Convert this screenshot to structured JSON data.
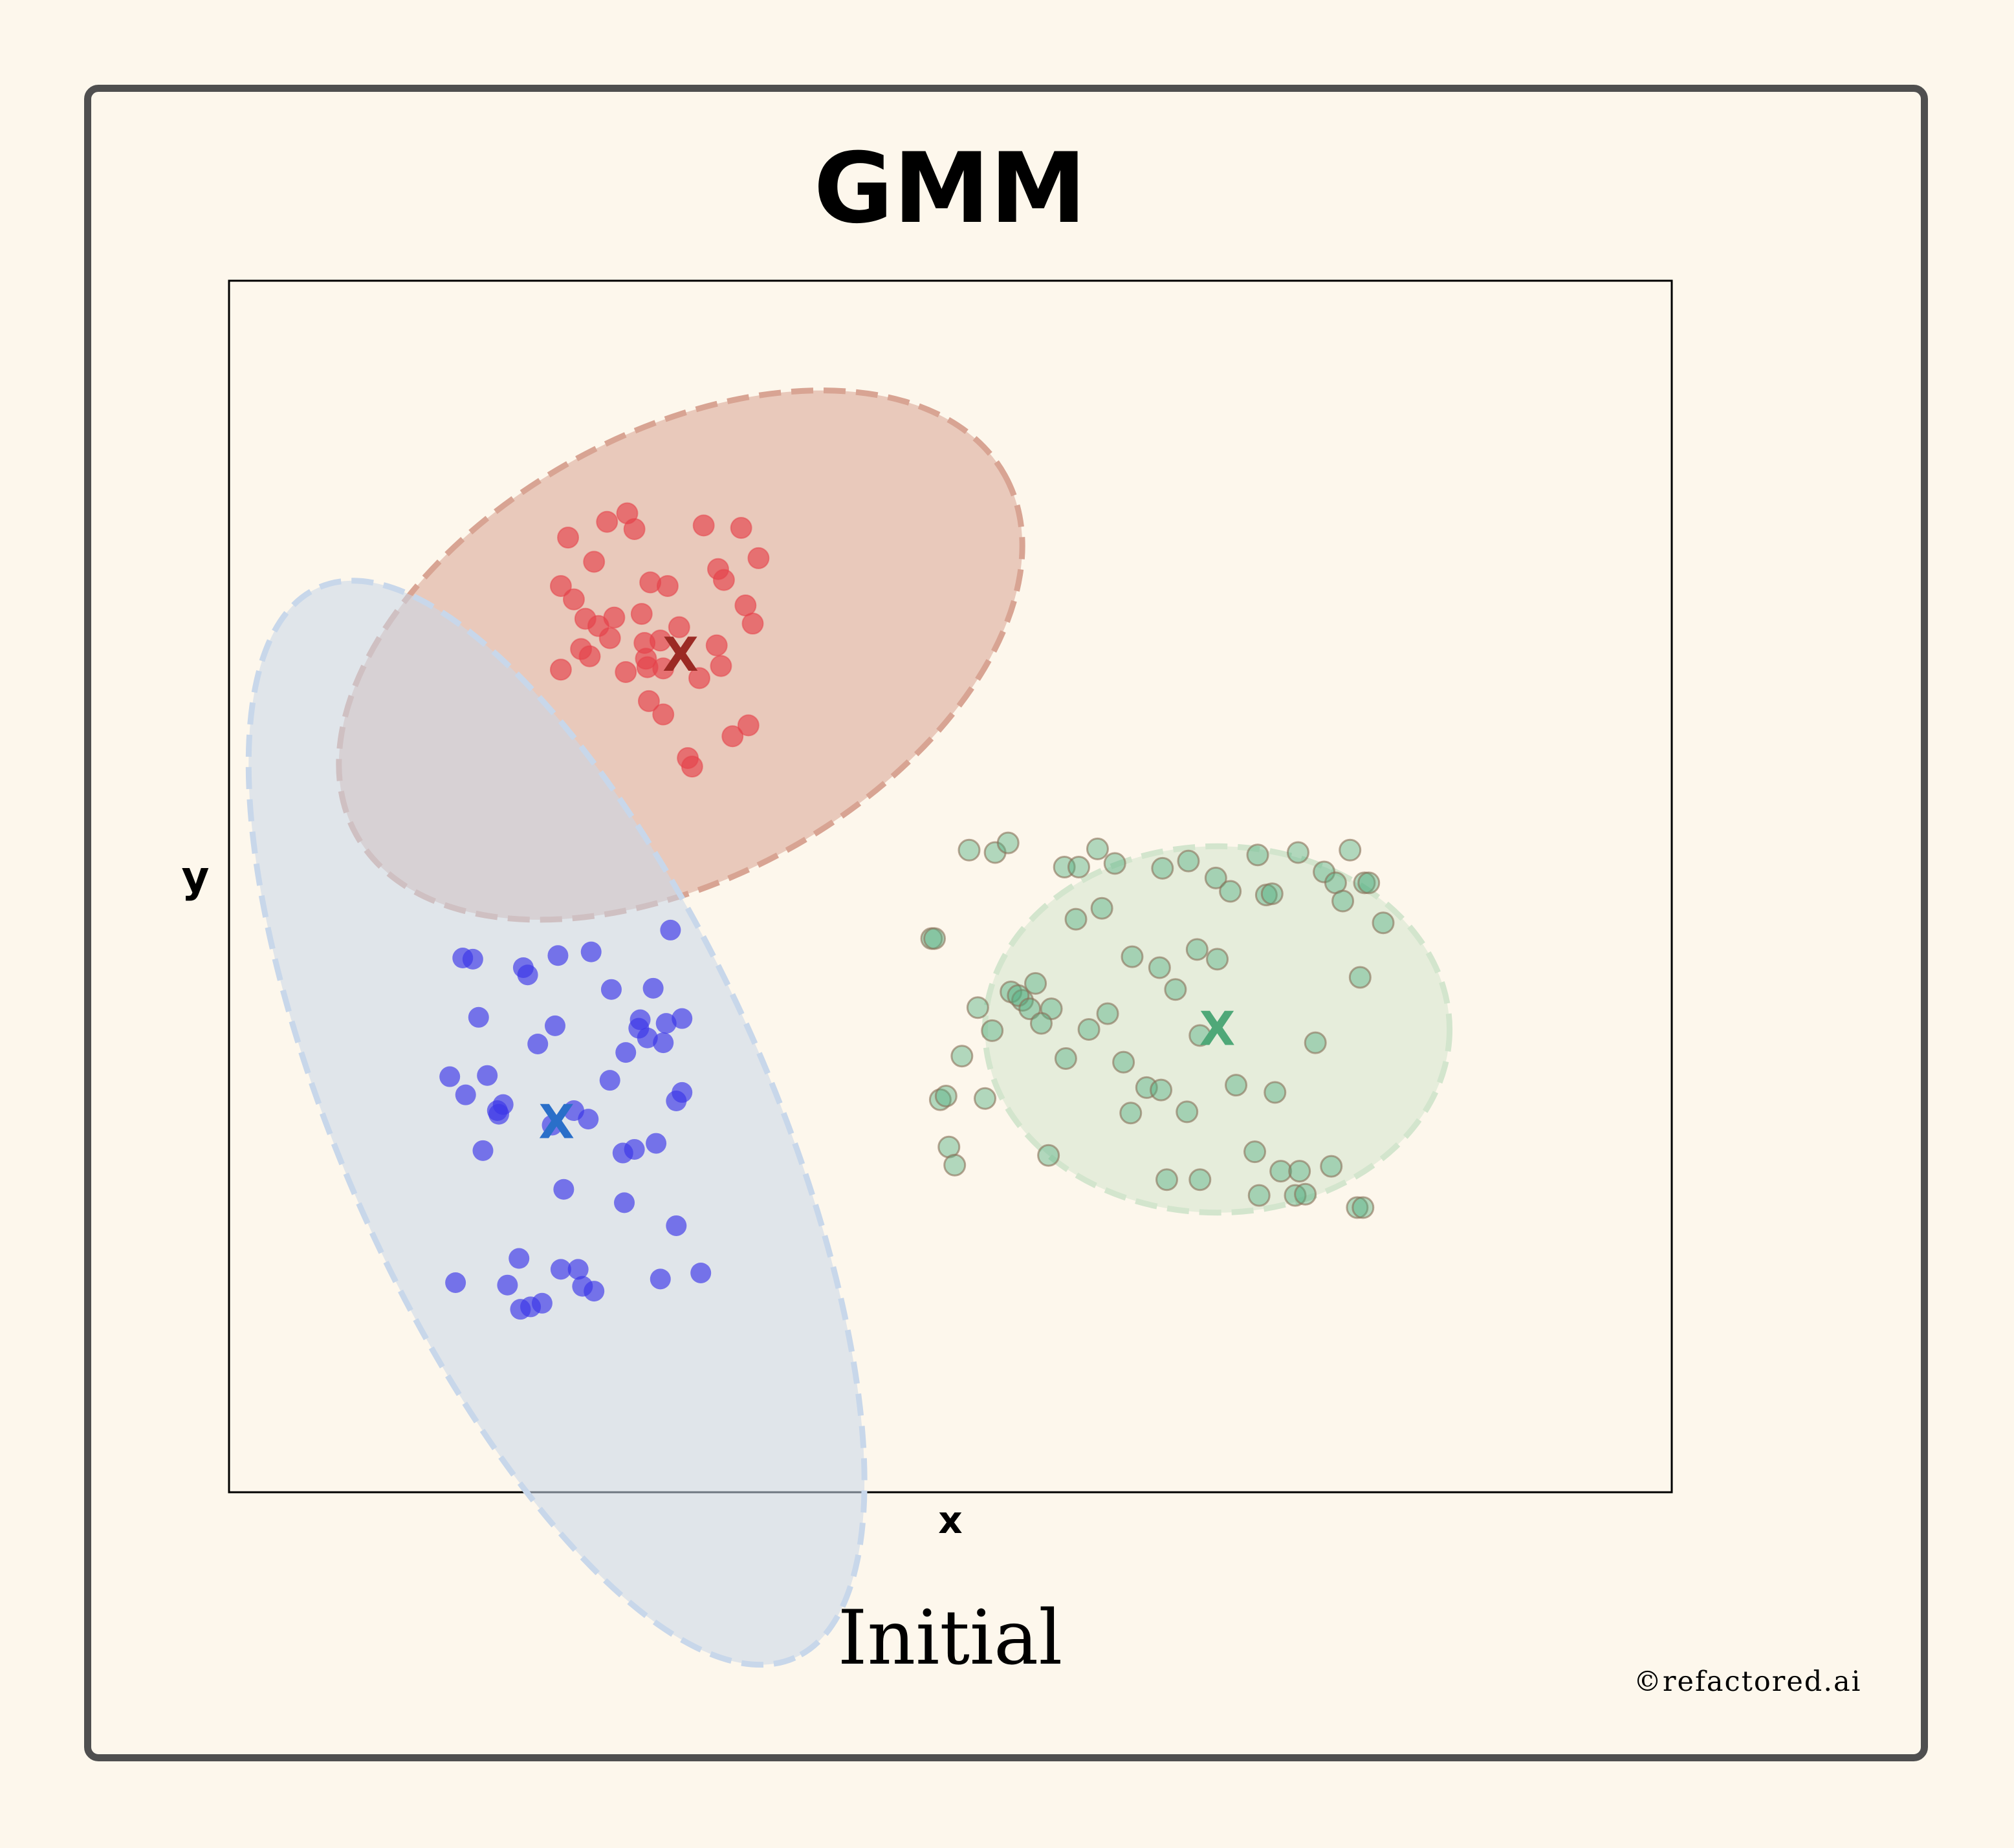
{
  "chart_data": {
    "type": "scatter",
    "title": "GMM",
    "subtitle": "Initial",
    "xlabel": "x",
    "ylabel": "y",
    "xlim": [
      0,
      100
    ],
    "ylim": [
      0,
      100
    ],
    "grid": false,
    "ticks": false,
    "centroid_marker": "X",
    "components": [
      {
        "color": "#d8a493",
        "point_color": "#e5414a",
        "centroid_color": "#9b2a24",
        "mean": [
          31.3,
          69.1
        ],
        "ellipse_radii": [
          25.7,
          15.4
        ],
        "ellipse_angle_deg": 29,
        "points": [
          [
            26.2,
            80.1
          ],
          [
            25.3,
            76.8
          ],
          [
            23.5,
            78.8
          ],
          [
            27.6,
            80.8
          ],
          [
            28.1,
            79.5
          ],
          [
            23.0,
            74.8
          ],
          [
            29.2,
            75.1
          ],
          [
            23.9,
            73.7
          ],
          [
            24.7,
            72.1
          ],
          [
            26.7,
            72.2
          ],
          [
            28.6,
            72.5
          ],
          [
            32.9,
            79.8
          ],
          [
            25.6,
            71.5
          ],
          [
            26.4,
            70.5
          ],
          [
            24.4,
            69.6
          ],
          [
            25.0,
            69.0
          ],
          [
            30.4,
            74.8
          ],
          [
            28.8,
            70.1
          ],
          [
            31.2,
            71.4
          ],
          [
            33.9,
            76.2
          ],
          [
            34.3,
            75.3
          ],
          [
            36.7,
            77.1
          ],
          [
            35.5,
            79.6
          ],
          [
            35.8,
            73.2
          ],
          [
            36.3,
            71.7
          ],
          [
            34.1,
            68.2
          ],
          [
            23.0,
            67.9
          ],
          [
            27.5,
            67.7
          ],
          [
            29.0,
            68.1
          ],
          [
            30.1,
            68.0
          ],
          [
            28.9,
            68.8
          ],
          [
            32.6,
            67.2
          ],
          [
            33.8,
            69.9
          ],
          [
            29.9,
            70.3
          ],
          [
            30.1,
            64.2
          ],
          [
            29.1,
            65.3
          ],
          [
            34.9,
            62.4
          ],
          [
            31.8,
            60.6
          ],
          [
            36.0,
            63.3
          ],
          [
            32.1,
            59.9
          ]
        ]
      },
      {
        "color": "#c8d7ea",
        "point_color": "#3a34e8",
        "centroid_color": "#2a6fc9",
        "mean": [
          22.7,
          30.5
        ],
        "ellipse_radii": [
          40.6,
          14.8
        ],
        "ellipse_angle_deg": -66,
        "points": [
          [
            16.2,
            44.1
          ],
          [
            16.9,
            44.0
          ],
          [
            20.4,
            43.3
          ],
          [
            20.7,
            42.7
          ],
          [
            22.8,
            44.3
          ],
          [
            25.1,
            44.6
          ],
          [
            30.6,
            46.4
          ],
          [
            26.5,
            41.5
          ],
          [
            29.4,
            41.6
          ],
          [
            17.3,
            39.2
          ],
          [
            22.6,
            38.5
          ],
          [
            28.5,
            39.0
          ],
          [
            28.4,
            38.3
          ],
          [
            29.0,
            37.5
          ],
          [
            30.3,
            38.7
          ],
          [
            31.4,
            39.1
          ],
          [
            21.4,
            37.0
          ],
          [
            27.5,
            36.3
          ],
          [
            30.1,
            37.1
          ],
          [
            15.3,
            34.3
          ],
          [
            17.9,
            34.4
          ],
          [
            16.4,
            32.8
          ],
          [
            18.6,
            31.5
          ],
          [
            26.4,
            34.0
          ],
          [
            31.4,
            33.0
          ],
          [
            31.0,
            32.3
          ],
          [
            19.0,
            32.0
          ],
          [
            18.7,
            31.2
          ],
          [
            23.9,
            31.5
          ],
          [
            24.9,
            30.8
          ],
          [
            22.4,
            30.3
          ],
          [
            27.3,
            28.0
          ],
          [
            28.1,
            28.3
          ],
          [
            17.6,
            28.2
          ],
          [
            29.6,
            28.8
          ],
          [
            23.2,
            25.0
          ],
          [
            27.4,
            23.9
          ],
          [
            31.0,
            22.0
          ],
          [
            20.1,
            19.3
          ],
          [
            23.0,
            18.4
          ],
          [
            24.2,
            18.4
          ],
          [
            15.7,
            17.3
          ],
          [
            19.3,
            17.1
          ],
          [
            24.5,
            17.0
          ],
          [
            25.3,
            16.6
          ],
          [
            20.9,
            15.3
          ],
          [
            21.7,
            15.6
          ],
          [
            20.2,
            15.1
          ],
          [
            29.9,
            17.6
          ],
          [
            32.7,
            18.1
          ]
        ]
      },
      {
        "color": "#d3e5cd",
        "point_color": "#54b082",
        "centroid_color": "#4fa878",
        "mean": [
          68.5,
          38.2
        ],
        "ellipse_radii": [
          16.1,
          12.7
        ],
        "ellipse_angle_deg": 0,
        "points": [
          [
            51.3,
            53.0
          ],
          [
            53.1,
            52.8
          ],
          [
            54.0,
            53.6
          ],
          [
            57.9,
            51.6
          ],
          [
            58.9,
            51.6
          ],
          [
            60.2,
            53.1
          ],
          [
            61.4,
            51.9
          ],
          [
            64.7,
            51.5
          ],
          [
            66.5,
            52.1
          ],
          [
            68.4,
            50.7
          ],
          [
            69.4,
            49.6
          ],
          [
            71.3,
            52.6
          ],
          [
            71.9,
            49.3
          ],
          [
            72.3,
            49.4
          ],
          [
            74.1,
            52.8
          ],
          [
            75.9,
            51.2
          ],
          [
            76.7,
            50.3
          ],
          [
            77.2,
            48.8
          ],
          [
            77.7,
            53.0
          ],
          [
            78.7,
            50.3
          ],
          [
            79.0,
            50.3
          ],
          [
            58.7,
            47.3
          ],
          [
            60.5,
            48.2
          ],
          [
            80.0,
            47.0
          ],
          [
            48.7,
            45.7
          ],
          [
            48.9,
            45.7
          ],
          [
            62.6,
            44.2
          ],
          [
            64.5,
            43.3
          ],
          [
            67.1,
            44.8
          ],
          [
            68.5,
            44.0
          ],
          [
            54.2,
            41.3
          ],
          [
            55.0,
            40.6
          ],
          [
            54.7,
            41.0
          ],
          [
            55.9,
            42.0
          ],
          [
            51.9,
            40.0
          ],
          [
            55.5,
            39.9
          ],
          [
            57.0,
            39.9
          ],
          [
            56.3,
            38.7
          ],
          [
            60.9,
            39.5
          ],
          [
            65.6,
            41.5
          ],
          [
            52.9,
            38.1
          ],
          [
            59.6,
            38.2
          ],
          [
            67.3,
            37.7
          ],
          [
            75.3,
            37.1
          ],
          [
            78.4,
            42.5
          ],
          [
            50.8,
            36.0
          ],
          [
            58.0,
            35.8
          ],
          [
            62.0,
            35.5
          ],
          [
            63.6,
            33.4
          ],
          [
            64.6,
            33.2
          ],
          [
            69.8,
            33.6
          ],
          [
            72.5,
            33.0
          ],
          [
            49.3,
            32.4
          ],
          [
            49.7,
            32.7
          ],
          [
            52.4,
            32.5
          ],
          [
            62.5,
            31.3
          ],
          [
            66.4,
            31.4
          ],
          [
            49.9,
            28.5
          ],
          [
            56.8,
            27.8
          ],
          [
            71.1,
            28.1
          ],
          [
            50.3,
            27.0
          ],
          [
            65.0,
            25.8
          ],
          [
            67.3,
            25.8
          ],
          [
            72.9,
            26.5
          ],
          [
            74.2,
            26.5
          ],
          [
            76.4,
            26.9
          ],
          [
            71.4,
            24.5
          ],
          [
            73.9,
            24.5
          ],
          [
            74.6,
            24.6
          ],
          [
            78.2,
            23.5
          ],
          [
            78.6,
            23.5
          ]
        ]
      }
    ]
  },
  "credit": "©refactored.ai"
}
